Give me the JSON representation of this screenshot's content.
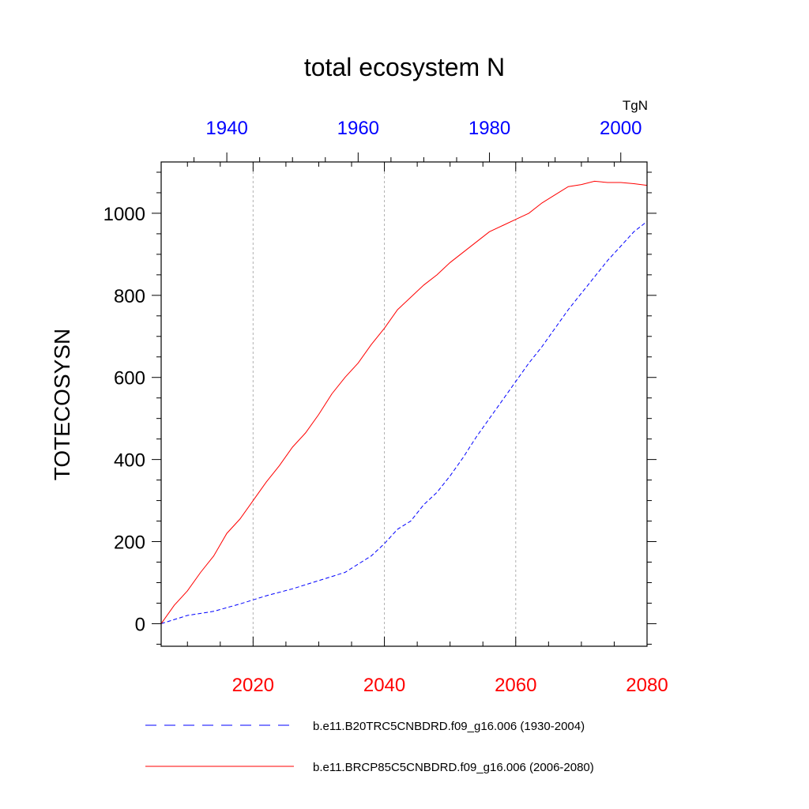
{
  "chart_data": {
    "type": "line",
    "title": "total ecosystem N",
    "ylabel": "TOTECOSYSN",
    "units": "TgN",
    "ylim": [
      -55,
      1125
    ],
    "yticks": [
      0,
      200,
      400,
      600,
      800,
      1000
    ],
    "ytick_labels": [
      "0",
      "200",
      "400",
      "600",
      "800",
      "1000"
    ],
    "grid": "vertical dotted lines at bottom-axis major ticks",
    "legend_position": "bottom",
    "bottom_axis": {
      "range": [
        2006,
        2080
      ],
      "ticks": [
        2020,
        2040,
        2060,
        2080
      ],
      "tick_labels": [
        "2020",
        "2040",
        "2060",
        "2080"
      ],
      "color": "#ff0000"
    },
    "top_axis": {
      "range": [
        1930,
        2004
      ],
      "ticks": [
        1940,
        1960,
        1980,
        2000
      ],
      "tick_labels": [
        "1940",
        "1960",
        "1980",
        "2000"
      ],
      "color": "#0000ff"
    },
    "series": [
      {
        "name": "b.e11.B20TRC5CNBDRD.f09_g16.006 (1930-2004)",
        "color": "#0000ff",
        "style": "dashed",
        "axis": "top",
        "x": [
          1930,
          1934,
          1938,
          1942,
          1946,
          1950,
          1954,
          1958,
          1962,
          1964,
          1966,
          1968,
          1970,
          1972,
          1974,
          1976,
          1978,
          1980,
          1982,
          1984,
          1986,
          1988,
          1990,
          1992,
          1994,
          1996,
          1998,
          2000,
          2002,
          2004
        ],
        "y": [
          0,
          20,
          30,
          48,
          68,
          85,
          105,
          125,
          165,
          195,
          230,
          250,
          290,
          320,
          360,
          405,
          455,
          500,
          545,
          590,
          635,
          675,
          720,
          765,
          805,
          845,
          885,
          920,
          955,
          980
        ]
      },
      {
        "name": "b.e11.BRCP85C5CNBDRD.f09_g16.006 (2006-2080)",
        "color": "#ff0000",
        "style": "solid",
        "axis": "bottom",
        "x": [
          2006,
          2008,
          2010,
          2012,
          2014,
          2016,
          2018,
          2020,
          2022,
          2024,
          2026,
          2028,
          2030,
          2032,
          2034,
          2036,
          2038,
          2040,
          2042,
          2044,
          2046,
          2048,
          2050,
          2052,
          2054,
          2056,
          2058,
          2060,
          2062,
          2064,
          2066,
          2068,
          2070,
          2072,
          2074,
          2076,
          2078,
          2080
        ],
        "y": [
          0,
          45,
          80,
          125,
          165,
          220,
          255,
          300,
          345,
          385,
          430,
          465,
          510,
          560,
          600,
          635,
          680,
          720,
          765,
          795,
          825,
          850,
          880,
          905,
          930,
          955,
          970,
          985,
          1000,
          1025,
          1045,
          1065,
          1070,
          1078,
          1075,
          1075,
          1072,
          1068
        ]
      }
    ]
  }
}
